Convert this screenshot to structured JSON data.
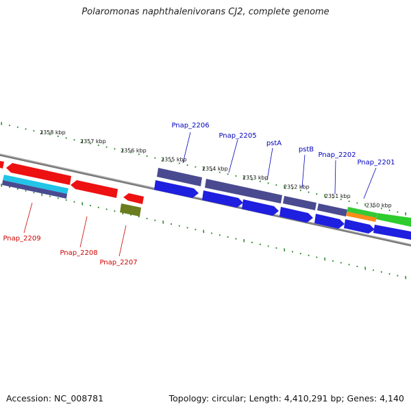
{
  "title": "Polaromonas naphthalenivorans CJ2, complete genome",
  "footer": {
    "accession": "Accession: NC_008781",
    "summary": "Topology: circular; Length: 4,410,291 bp; Genes: 4,140"
  },
  "colors": {
    "forward_gene_label": "#0000bb",
    "reverse_gene_label": "#cc0000",
    "tick": "#2e8b2e",
    "backbone": "#8a8a8a",
    "cds_forward": "#1f1fe0",
    "cds_reverse": "#ee1111",
    "gene_forward": "#4a4a90",
    "rrna_like": "#2ecc2e",
    "orange": "#ff8c1a",
    "cyan": "#22c4e8",
    "olive": "#6b7d1f"
  },
  "kbp_labels": [
    "2358 kbp",
    "2357 kbp",
    "2356 kbp",
    "2355 kbp",
    "2354 kbp",
    "2353 kbp",
    "2352 kbp",
    "2351 kbp",
    "2350 kbp"
  ],
  "gene_labels_forward": [
    "Pnap_2206",
    "Pnap_2205",
    "pstA",
    "pstB",
    "Pnap_2202",
    "Pnap_2201"
  ],
  "gene_labels_reverse": [
    "Pnap_2209",
    "Pnap_2208",
    "Pnap_2207"
  ]
}
